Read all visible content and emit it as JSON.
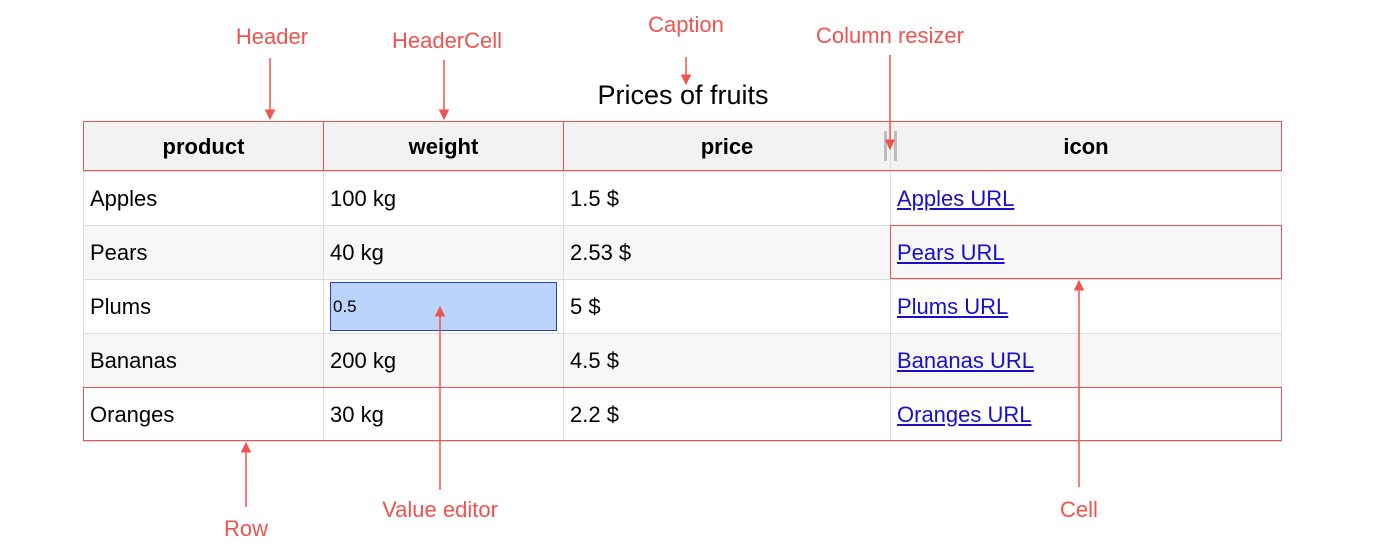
{
  "caption": "Prices of fruits",
  "columns": [
    "product",
    "weight",
    "price",
    "icon"
  ],
  "rows": [
    {
      "product": "Apples",
      "weight": "100 kg",
      "price": "1.5 $",
      "icon": "Apples URL"
    },
    {
      "product": "Pears",
      "weight": "40 kg",
      "price": "2.53 $",
      "icon": "Pears URL"
    },
    {
      "product": "Plums",
      "weight": "0.5",
      "price": "5 $",
      "icon": "Plums URL"
    },
    {
      "product": "Bananas",
      "weight": "200 kg",
      "price": "4.5 $",
      "icon": "Bananas URL"
    },
    {
      "product": "Oranges",
      "weight": "30 kg",
      "price": "2.2 $",
      "icon": "Oranges URL"
    }
  ],
  "annotations": {
    "header": "Header",
    "header_cell": "HeaderCell",
    "caption": "Caption",
    "column_resizer": "Column resizer",
    "row": "Row",
    "value_editor": "Value editor",
    "cell": "Cell"
  },
  "colors": {
    "annotation": "#ef5350",
    "link": "#1a0dcc",
    "editor_fill": "#bcd4fb"
  }
}
